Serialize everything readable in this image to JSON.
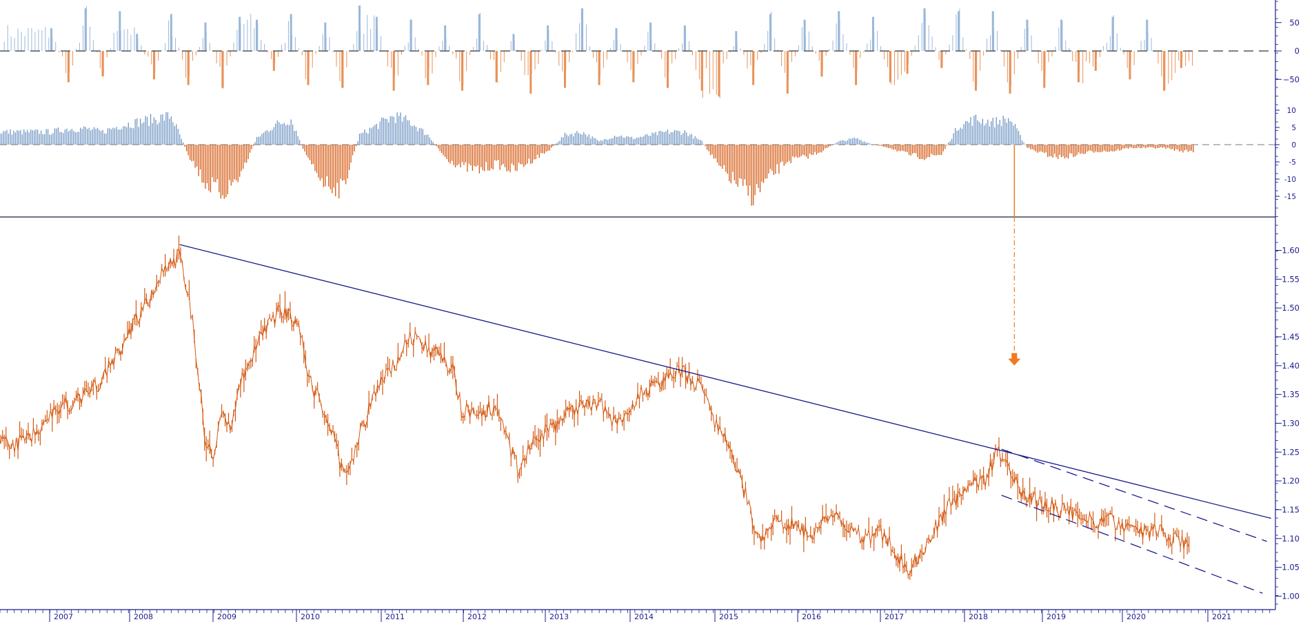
{
  "colors": {
    "axis": "#1a1a8c",
    "price": "#d4570f",
    "positive_bar_top": "#9ab7d9",
    "negative_bar_top": "#e8925a",
    "positive_bar_mid": "#6f95c2",
    "negative_bar_mid": "#d4570f",
    "trendline": "#1a1a8c",
    "signal_arrow": "#f07a20"
  },
  "chart_data": [
    {
      "type": "bar",
      "panel": "top-oscillator",
      "yticks": [
        50,
        0,
        -50
      ],
      "ylim": [
        -80,
        80
      ],
      "zero_line": "dashed",
      "series": [
        {
          "x": [
            2007.0,
            2007.2,
            2007.4,
            2007.6,
            2007.8,
            2008.0,
            2008.2,
            2008.4,
            2008.6,
            2008.8,
            2009.0,
            2009.2,
            2009.4,
            2009.6,
            2009.8,
            2010.0,
            2010.2,
            2010.4,
            2010.6,
            2010.8,
            2011.0,
            2011.2,
            2011.4,
            2011.6,
            2011.8,
            2012.0,
            2012.2,
            2012.4,
            2012.6,
            2012.8,
            2013.0,
            2013.2,
            2013.4,
            2013.6,
            2013.8,
            2014.0,
            2014.2,
            2014.4,
            2014.6,
            2014.8,
            2015.0,
            2015.2,
            2015.4,
            2015.6,
            2015.8,
            2016.0,
            2016.2,
            2016.4,
            2016.6,
            2016.8,
            2017.0,
            2017.2,
            2017.4,
            2017.6,
            2017.8,
            2018.0,
            2018.2,
            2018.4,
            2018.6,
            2018.8,
            2019.0,
            2019.2,
            2019.4,
            2019.6,
            2019.8,
            2020.0,
            2020.2
          ],
          "values": [
            40,
            -55,
            75,
            -45,
            70,
            30,
            -50,
            65,
            -60,
            50,
            -65,
            60,
            55,
            -35,
            65,
            -60,
            50,
            -65,
            80,
            60,
            -70,
            55,
            -60,
            45,
            -70,
            65,
            -55,
            30,
            -75,
            45,
            -65,
            75,
            -60,
            40,
            -55,
            50,
            -65,
            45,
            -70,
            -80,
            35,
            -60,
            65,
            -75,
            55,
            -45,
            70,
            -60,
            60,
            -55,
            -40,
            75,
            -30,
            70,
            -70,
            70,
            -75,
            55,
            -65,
            55,
            -55,
            -35,
            60,
            -50,
            55,
            -70,
            -30
          ]
        }
      ]
    },
    {
      "type": "bar",
      "panel": "middle-oscillator",
      "yticks": [
        10,
        5,
        0,
        -5,
        -10,
        -15
      ],
      "ylim": [
        -18,
        12
      ],
      "zero_line": "dashed",
      "series": [
        {
          "x": [
            2007.0,
            2007.2,
            2007.4,
            2007.6,
            2007.8,
            2008.0,
            2008.2,
            2008.4,
            2008.6,
            2008.8,
            2009.0,
            2009.2,
            2009.4,
            2009.6,
            2009.8,
            2010.0,
            2010.2,
            2010.4,
            2010.6,
            2010.8,
            2011.0,
            2011.2,
            2011.4,
            2011.6,
            2011.8,
            2012.0,
            2012.2,
            2012.4,
            2012.6,
            2012.8,
            2013.0,
            2013.2,
            2013.4,
            2013.6,
            2013.8,
            2014.0,
            2014.2,
            2014.4,
            2014.6,
            2014.8,
            2015.0,
            2015.2,
            2015.4,
            2015.6,
            2015.8,
            2016.0,
            2016.2,
            2016.4,
            2016.6,
            2016.8,
            2017.0,
            2017.2,
            2017.4,
            2017.6,
            2017.8,
            2018.0,
            2018.2,
            2018.4,
            2018.6,
            2018.8,
            2019.0,
            2019.2,
            2019.4,
            2019.6,
            2019.8,
            2020.0,
            2020.2
          ],
          "values": [
            4,
            5,
            5,
            4,
            6,
            7,
            8,
            9,
            -3,
            -12,
            -15,
            -10,
            2,
            6,
            8,
            -5,
            -12,
            -14,
            3,
            6,
            9,
            7,
            3,
            -4,
            -7,
            -8,
            -6,
            -8,
            -5,
            -2,
            3,
            4,
            1,
            3,
            2,
            3,
            4,
            4,
            1,
            -7,
            -12,
            -16,
            -10,
            -5,
            -4,
            -2,
            1,
            2,
            0,
            -1,
            -3,
            -4,
            -3,
            6,
            8,
            7,
            8,
            -1,
            -3,
            -4,
            -3,
            -2,
            -2,
            -1,
            -1,
            -1,
            -2
          ]
        }
      ]
    },
    {
      "type": "line",
      "panel": "price",
      "yticks": [
        1.6,
        1.55,
        1.5,
        1.45,
        1.4,
        1.35,
        1.3,
        1.25,
        1.2,
        1.15,
        1.1,
        1.05,
        1.0
      ],
      "ylim": [
        0.985,
        1.64
      ],
      "xticks": [
        "2007",
        "2008",
        "2009",
        "2010",
        "2011",
        "2012",
        "2013",
        "2014",
        "2015",
        "2016",
        "2017",
        "2018",
        "2018",
        "2019",
        "2020",
        "2021"
      ],
      "series": [
        {
          "x": [
            2006.35,
            2006.5,
            2006.7,
            2006.9,
            2007.1,
            2007.3,
            2007.5,
            2007.7,
            2007.9,
            2008.1,
            2008.3,
            2008.5,
            2008.65,
            2008.8,
            2008.9,
            2009.0,
            2009.1,
            2009.2,
            2009.35,
            2009.5,
            2009.7,
            2009.9,
            2010.0,
            2010.2,
            2010.4,
            2010.45,
            2010.6,
            2010.8,
            2011.0,
            2011.2,
            2011.4,
            2011.5,
            2011.7,
            2011.8,
            2012.0,
            2012.2,
            2012.45,
            2012.6,
            2012.8,
            2013.0,
            2013.2,
            2013.4,
            2013.6,
            2013.8,
            2014.0,
            2014.2,
            2014.35,
            2014.55,
            2014.75,
            2014.95,
            2015.1,
            2015.25,
            2015.5,
            2015.7,
            2015.9,
            2016.1,
            2016.3,
            2016.5,
            2016.7,
            2016.85,
            2017.0,
            2017.1,
            2017.3,
            2017.5,
            2017.7,
            2017.9,
            2018.05,
            2018.15,
            2018.25,
            2018.4,
            2018.6,
            2018.8,
            2019.0,
            2019.2,
            2019.4,
            2019.6,
            2019.8,
            2020.0,
            2020.1,
            2020.2,
            2020.3
          ],
          "values": [
            1.28,
            1.26,
            1.27,
            1.3,
            1.33,
            1.34,
            1.36,
            1.4,
            1.46,
            1.5,
            1.57,
            1.59,
            1.48,
            1.27,
            1.25,
            1.32,
            1.28,
            1.37,
            1.42,
            1.46,
            1.5,
            1.47,
            1.38,
            1.32,
            1.22,
            1.2,
            1.28,
            1.36,
            1.4,
            1.45,
            1.43,
            1.42,
            1.39,
            1.32,
            1.32,
            1.33,
            1.22,
            1.26,
            1.29,
            1.31,
            1.33,
            1.34,
            1.3,
            1.34,
            1.36,
            1.38,
            1.39,
            1.37,
            1.3,
            1.25,
            1.18,
            1.1,
            1.13,
            1.12,
            1.11,
            1.14,
            1.12,
            1.1,
            1.11,
            1.08,
            1.05,
            1.06,
            1.11,
            1.16,
            1.19,
            1.2,
            1.25,
            1.24,
            1.2,
            1.17,
            1.16,
            1.15,
            1.14,
            1.13,
            1.13,
            1.12,
            1.11,
            1.11,
            1.1,
            1.09,
            1.09
          ]
        }
      ],
      "trendlines": [
        {
          "from": [
            2008.5,
            1.61
          ],
          "to": [
            2021.25,
            1.135
          ],
          "style": "solid"
        },
        {
          "from": [
            2018.1,
            1.255
          ],
          "to": [
            2021.2,
            1.095
          ],
          "style": "dashed"
        },
        {
          "from": [
            2018.1,
            1.175
          ],
          "to": [
            2021.15,
            1.005
          ],
          "style": "dashed"
        }
      ],
      "signal": {
        "x": 2018.25,
        "arrow_price": 1.405,
        "direction": "down"
      }
    }
  ]
}
